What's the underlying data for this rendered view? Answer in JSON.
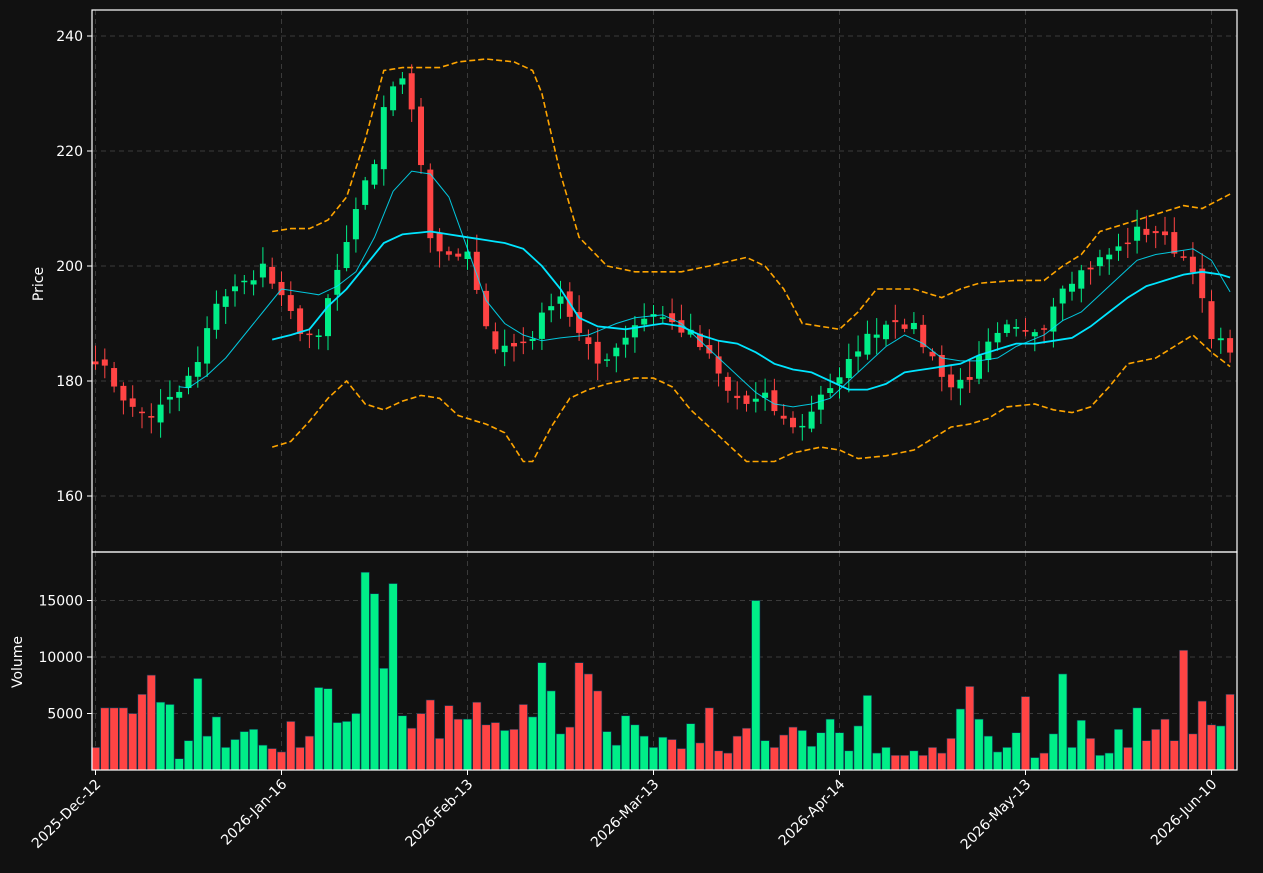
{
  "chart_data": {
    "type": "candlestick",
    "colors": {
      "background": "#111111",
      "up": "#00ee88",
      "down": "#ff4444",
      "ma_fast": "#00e5ff",
      "ma_slow": "#00e5ff",
      "bollinger": "#ffa500",
      "grid": "#3a3a3a",
      "frame": "#ffffff"
    },
    "grid": true,
    "price_axis": {
      "label": "Price",
      "ticks": [
        160,
        180,
        200,
        220,
        240
      ],
      "ylim": [
        150,
        244
      ]
    },
    "volume_axis": {
      "label": "Volume",
      "ticks": [
        5000,
        10000,
        15000
      ],
      "ylim": [
        0,
        19000
      ]
    },
    "x_ticks": [
      {
        "index": 0,
        "label": "2025-Dec-12"
      },
      {
        "index": 20,
        "label": "2026-Jan-16"
      },
      {
        "index": 40,
        "label": "2026-Feb-13"
      },
      {
        "index": 60,
        "label": "2026-Mar-13"
      },
      {
        "index": 80,
        "label": "2026-Apr-14"
      },
      {
        "index": 100,
        "label": "2026-May-13"
      },
      {
        "index": 120,
        "label": "2026-Jun-10"
      }
    ],
    "close_anchors": [
      [
        0,
        184
      ],
      [
        4,
        175
      ],
      [
        6,
        174
      ],
      [
        9,
        178
      ],
      [
        11,
        183
      ],
      [
        13,
        194
      ],
      [
        16,
        197
      ],
      [
        18,
        200
      ],
      [
        19,
        197
      ],
      [
        20,
        194
      ],
      [
        22,
        189
      ],
      [
        24,
        187
      ],
      [
        25,
        194
      ],
      [
        27,
        204
      ],
      [
        29,
        214
      ],
      [
        30,
        218
      ],
      [
        31,
        228
      ],
      [
        33,
        233
      ],
      [
        34,
        228
      ],
      [
        35,
        218
      ],
      [
        36,
        205
      ],
      [
        38,
        201
      ],
      [
        40,
        202
      ],
      [
        41,
        195
      ],
      [
        43,
        186
      ],
      [
        45,
        186
      ],
      [
        47,
        188
      ],
      [
        49,
        194
      ],
      [
        50,
        195
      ],
      [
        52,
        188
      ],
      [
        54,
        183
      ],
      [
        56,
        186
      ],
      [
        58,
        190
      ],
      [
        60,
        192
      ],
      [
        62,
        190
      ],
      [
        64,
        188
      ],
      [
        66,
        184
      ],
      [
        68,
        178
      ],
      [
        70,
        176
      ],
      [
        72,
        177
      ],
      [
        74,
        173
      ],
      [
        76,
        172
      ],
      [
        78,
        178
      ],
      [
        80,
        180
      ],
      [
        82,
        186
      ],
      [
        84,
        189
      ],
      [
        86,
        191
      ],
      [
        88,
        189
      ],
      [
        90,
        184
      ],
      [
        92,
        179
      ],
      [
        94,
        181
      ],
      [
        96,
        186
      ],
      [
        98,
        189
      ],
      [
        100,
        188
      ],
      [
        102,
        190
      ],
      [
        104,
        197
      ],
      [
        106,
        199
      ],
      [
        108,
        201
      ],
      [
        110,
        203
      ],
      [
        112,
        206
      ],
      [
        114,
        206
      ],
      [
        116,
        203
      ],
      [
        118,
        200
      ],
      [
        120,
        187
      ],
      [
        122,
        186
      ]
    ],
    "volume_anchors": [
      [
        0,
        2000
      ],
      [
        1,
        5500
      ],
      [
        3,
        5500
      ],
      [
        4,
        5000
      ],
      [
        6,
        8400
      ],
      [
        7,
        6000
      ],
      [
        8,
        5800
      ],
      [
        9,
        1000
      ],
      [
        10,
        2600
      ],
      [
        11,
        8100
      ],
      [
        12,
        3000
      ],
      [
        13,
        4700
      ],
      [
        14,
        2000
      ],
      [
        16,
        3400
      ],
      [
        17,
        3600
      ],
      [
        18,
        2200
      ],
      [
        20,
        1600
      ],
      [
        21,
        4300
      ],
      [
        22,
        2000
      ],
      [
        23,
        3000
      ],
      [
        24,
        7300
      ],
      [
        25,
        7200
      ],
      [
        26,
        4200
      ],
      [
        27,
        4300
      ],
      [
        28,
        5000
      ],
      [
        29,
        17500
      ],
      [
        30,
        15600
      ],
      [
        31,
        9000
      ],
      [
        32,
        16500
      ],
      [
        33,
        4800
      ],
      [
        34,
        3700
      ],
      [
        35,
        5000
      ],
      [
        36,
        6200
      ],
      [
        37,
        2800
      ],
      [
        38,
        5700
      ],
      [
        39,
        4500
      ],
      [
        40,
        4500
      ],
      [
        41,
        6000
      ],
      [
        42,
        4000
      ],
      [
        43,
        4200
      ],
      [
        44,
        3500
      ],
      [
        45,
        3600
      ],
      [
        46,
        5800
      ],
      [
        47,
        4700
      ],
      [
        48,
        9500
      ],
      [
        49,
        7000
      ],
      [
        50,
        3200
      ],
      [
        51,
        3800
      ],
      [
        52,
        9500
      ],
      [
        53,
        8500
      ],
      [
        54,
        7000
      ],
      [
        55,
        3400
      ],
      [
        56,
        2200
      ],
      [
        57,
        4800
      ],
      [
        58,
        4000
      ],
      [
        59,
        3000
      ],
      [
        60,
        2000
      ],
      [
        61,
        2900
      ],
      [
        62,
        2700
      ],
      [
        63,
        1900
      ],
      [
        64,
        4100
      ],
      [
        65,
        2400
      ],
      [
        66,
        5500
      ],
      [
        67,
        1700
      ],
      [
        68,
        1500
      ],
      [
        69,
        3000
      ],
      [
        70,
        3700
      ],
      [
        71,
        15000
      ],
      [
        72,
        2600
      ],
      [
        73,
        2000
      ],
      [
        74,
        3100
      ],
      [
        75,
        3800
      ],
      [
        76,
        3500
      ],
      [
        77,
        2100
      ],
      [
        78,
        3300
      ],
      [
        79,
        4500
      ],
      [
        80,
        3300
      ],
      [
        81,
        1700
      ],
      [
        82,
        3900
      ],
      [
        83,
        6600
      ],
      [
        84,
        1500
      ],
      [
        85,
        2000
      ],
      [
        86,
        1300
      ],
      [
        87,
        1300
      ],
      [
        88,
        1700
      ],
      [
        89,
        1300
      ],
      [
        90,
        2000
      ],
      [
        91,
        1500
      ],
      [
        92,
        2800
      ],
      [
        93,
        5400
      ],
      [
        94,
        7400
      ],
      [
        95,
        4500
      ],
      [
        96,
        3000
      ],
      [
        97,
        1600
      ],
      [
        98,
        2000
      ],
      [
        99,
        3300
      ],
      [
        100,
        6500
      ],
      [
        101,
        1100
      ],
      [
        102,
        1500
      ],
      [
        103,
        3200
      ],
      [
        104,
        8500
      ],
      [
        105,
        2000
      ],
      [
        106,
        4400
      ],
      [
        107,
        2800
      ],
      [
        108,
        1300
      ],
      [
        109,
        1500
      ],
      [
        110,
        3600
      ],
      [
        111,
        2000
      ],
      [
        112,
        5500
      ],
      [
        113,
        2600
      ],
      [
        114,
        3600
      ],
      [
        115,
        4500
      ],
      [
        116,
        2600
      ],
      [
        117,
        10600
      ],
      [
        118,
        3200
      ],
      [
        119,
        6100
      ],
      [
        120,
        4000
      ],
      [
        121,
        3900
      ],
      [
        122,
        6700
      ]
    ],
    "bollinger_upper_anchors": [
      [
        19,
        206
      ],
      [
        21,
        206.5
      ],
      [
        23,
        206.5
      ],
      [
        25,
        208
      ],
      [
        27,
        212
      ],
      [
        29,
        222
      ],
      [
        31,
        234
      ],
      [
        33,
        234.5
      ],
      [
        37,
        234.5
      ],
      [
        39,
        235.5
      ],
      [
        42,
        236
      ],
      [
        45,
        235.5
      ],
      [
        47,
        234
      ],
      [
        48,
        230
      ],
      [
        50,
        216
      ],
      [
        52,
        205
      ],
      [
        55,
        200
      ],
      [
        58,
        199
      ],
      [
        63,
        199
      ],
      [
        66,
        200
      ],
      [
        70,
        201.5
      ],
      [
        72,
        200
      ],
      [
        74,
        196
      ],
      [
        76,
        190
      ],
      [
        80,
        189
      ],
      [
        82,
        192
      ],
      [
        84,
        196
      ],
      [
        88,
        196
      ],
      [
        91,
        194.5
      ],
      [
        93,
        196
      ],
      [
        95,
        197
      ],
      [
        99,
        197.5
      ],
      [
        102,
        197.5
      ],
      [
        104,
        200
      ],
      [
        106,
        202
      ],
      [
        108,
        206
      ],
      [
        110,
        207
      ],
      [
        112,
        208
      ],
      [
        115,
        209.5
      ],
      [
        117,
        210.5
      ],
      [
        119,
        210
      ],
      [
        122,
        212.5
      ]
    ],
    "bollinger_lower_anchors": [
      [
        19,
        168.5
      ],
      [
        21,
        169.5
      ],
      [
        23,
        173
      ],
      [
        25,
        177
      ],
      [
        27,
        180
      ],
      [
        29,
        176
      ],
      [
        31,
        175
      ],
      [
        33,
        176.5
      ],
      [
        35,
        177.5
      ],
      [
        37,
        177
      ],
      [
        39,
        174
      ],
      [
        42,
        172.5
      ],
      [
        44,
        171
      ],
      [
        46,
        166
      ],
      [
        47,
        166
      ],
      [
        49,
        172
      ],
      [
        51,
        177
      ],
      [
        53,
        178.5
      ],
      [
        55,
        179.5
      ],
      [
        58,
        180.5
      ],
      [
        60,
        180.5
      ],
      [
        62,
        179
      ],
      [
        64,
        175
      ],
      [
        66,
        172
      ],
      [
        68,
        169
      ],
      [
        70,
        166
      ],
      [
        73,
        166
      ],
      [
        75,
        167.5
      ],
      [
        78,
        168.5
      ],
      [
        80,
        168
      ],
      [
        82,
        166.5
      ],
      [
        85,
        167
      ],
      [
        88,
        168
      ],
      [
        90,
        170
      ],
      [
        92,
        172
      ],
      [
        94,
        172.5
      ],
      [
        96,
        173.5
      ],
      [
        98,
        175.5
      ],
      [
        101,
        176
      ],
      [
        103,
        175
      ],
      [
        105,
        174.5
      ],
      [
        107,
        175.5
      ],
      [
        109,
        179
      ],
      [
        111,
        183
      ],
      [
        114,
        184
      ],
      [
        116,
        186
      ],
      [
        118,
        188
      ],
      [
        120,
        185
      ],
      [
        122,
        182.5
      ]
    ],
    "ma_fast_anchors": [
      [
        9,
        179
      ],
      [
        10,
        178.8
      ],
      [
        12,
        181
      ],
      [
        14,
        184
      ],
      [
        16,
        188
      ],
      [
        18,
        192
      ],
      [
        20,
        196
      ],
      [
        22,
        195.5
      ],
      [
        24,
        195
      ],
      [
        26,
        196.5
      ],
      [
        28,
        199
      ],
      [
        30,
        205
      ],
      [
        32,
        213
      ],
      [
        34,
        216.5
      ],
      [
        36,
        216
      ],
      [
        38,
        212
      ],
      [
        40,
        203
      ],
      [
        42,
        194
      ],
      [
        44,
        190
      ],
      [
        46,
        188
      ],
      [
        48,
        187
      ],
      [
        50,
        187.5
      ],
      [
        53,
        188
      ],
      [
        56,
        190
      ],
      [
        58,
        191
      ],
      [
        61,
        191.5
      ],
      [
        63,
        190
      ],
      [
        65,
        187
      ],
      [
        67,
        184
      ],
      [
        69,
        181
      ],
      [
        71,
        178
      ],
      [
        73,
        176
      ],
      [
        75,
        175.5
      ],
      [
        77,
        176
      ],
      [
        79,
        177
      ],
      [
        81,
        180
      ],
      [
        83,
        183
      ],
      [
        85,
        186
      ],
      [
        87,
        188
      ],
      [
        89,
        186.5
      ],
      [
        91,
        184
      ],
      [
        93,
        183.5
      ],
      [
        95,
        183.5
      ],
      [
        97,
        184
      ],
      [
        99,
        186
      ],
      [
        102,
        188
      ],
      [
        104,
        190.5
      ],
      [
        106,
        192
      ],
      [
        108,
        195
      ],
      [
        110,
        198
      ],
      [
        112,
        201
      ],
      [
        114,
        202
      ],
      [
        116,
        202.5
      ],
      [
        118,
        203
      ],
      [
        120,
        201
      ],
      [
        122,
        195.5
      ]
    ],
    "ma_slow_anchors": [
      [
        19,
        187.2
      ],
      [
        21,
        188
      ],
      [
        23,
        189
      ],
      [
        25,
        193
      ],
      [
        27,
        196
      ],
      [
        29,
        200
      ],
      [
        31,
        204
      ],
      [
        33,
        205.5
      ],
      [
        36,
        206
      ],
      [
        38,
        205.5
      ],
      [
        40,
        205
      ],
      [
        42,
        204.5
      ],
      [
        44,
        204
      ],
      [
        46,
        203
      ],
      [
        48,
        200
      ],
      [
        50,
        196
      ],
      [
        52,
        191
      ],
      [
        54,
        189.5
      ],
      [
        57,
        189
      ],
      [
        59,
        189.5
      ],
      [
        61,
        190
      ],
      [
        63,
        189.5
      ],
      [
        65,
        188
      ],
      [
        67,
        187
      ],
      [
        69,
        186.5
      ],
      [
        71,
        185
      ],
      [
        73,
        183
      ],
      [
        75,
        182
      ],
      [
        77,
        181.5
      ],
      [
        79,
        180
      ],
      [
        81,
        178.5
      ],
      [
        83,
        178.5
      ],
      [
        85,
        179.5
      ],
      [
        87,
        181.5
      ],
      [
        89,
        182
      ],
      [
        91,
        182.5
      ],
      [
        93,
        183
      ],
      [
        95,
        184.5
      ],
      [
        97,
        185.5
      ],
      [
        99,
        186.5
      ],
      [
        101,
        186.5
      ],
      [
        103,
        187
      ],
      [
        105,
        187.5
      ],
      [
        107,
        189.5
      ],
      [
        109,
        192
      ],
      [
        111,
        194.5
      ],
      [
        113,
        196.5
      ],
      [
        115,
        197.5
      ],
      [
        117,
        198.5
      ],
      [
        119,
        199
      ],
      [
        121,
        198.5
      ],
      [
        122,
        198
      ]
    ]
  }
}
